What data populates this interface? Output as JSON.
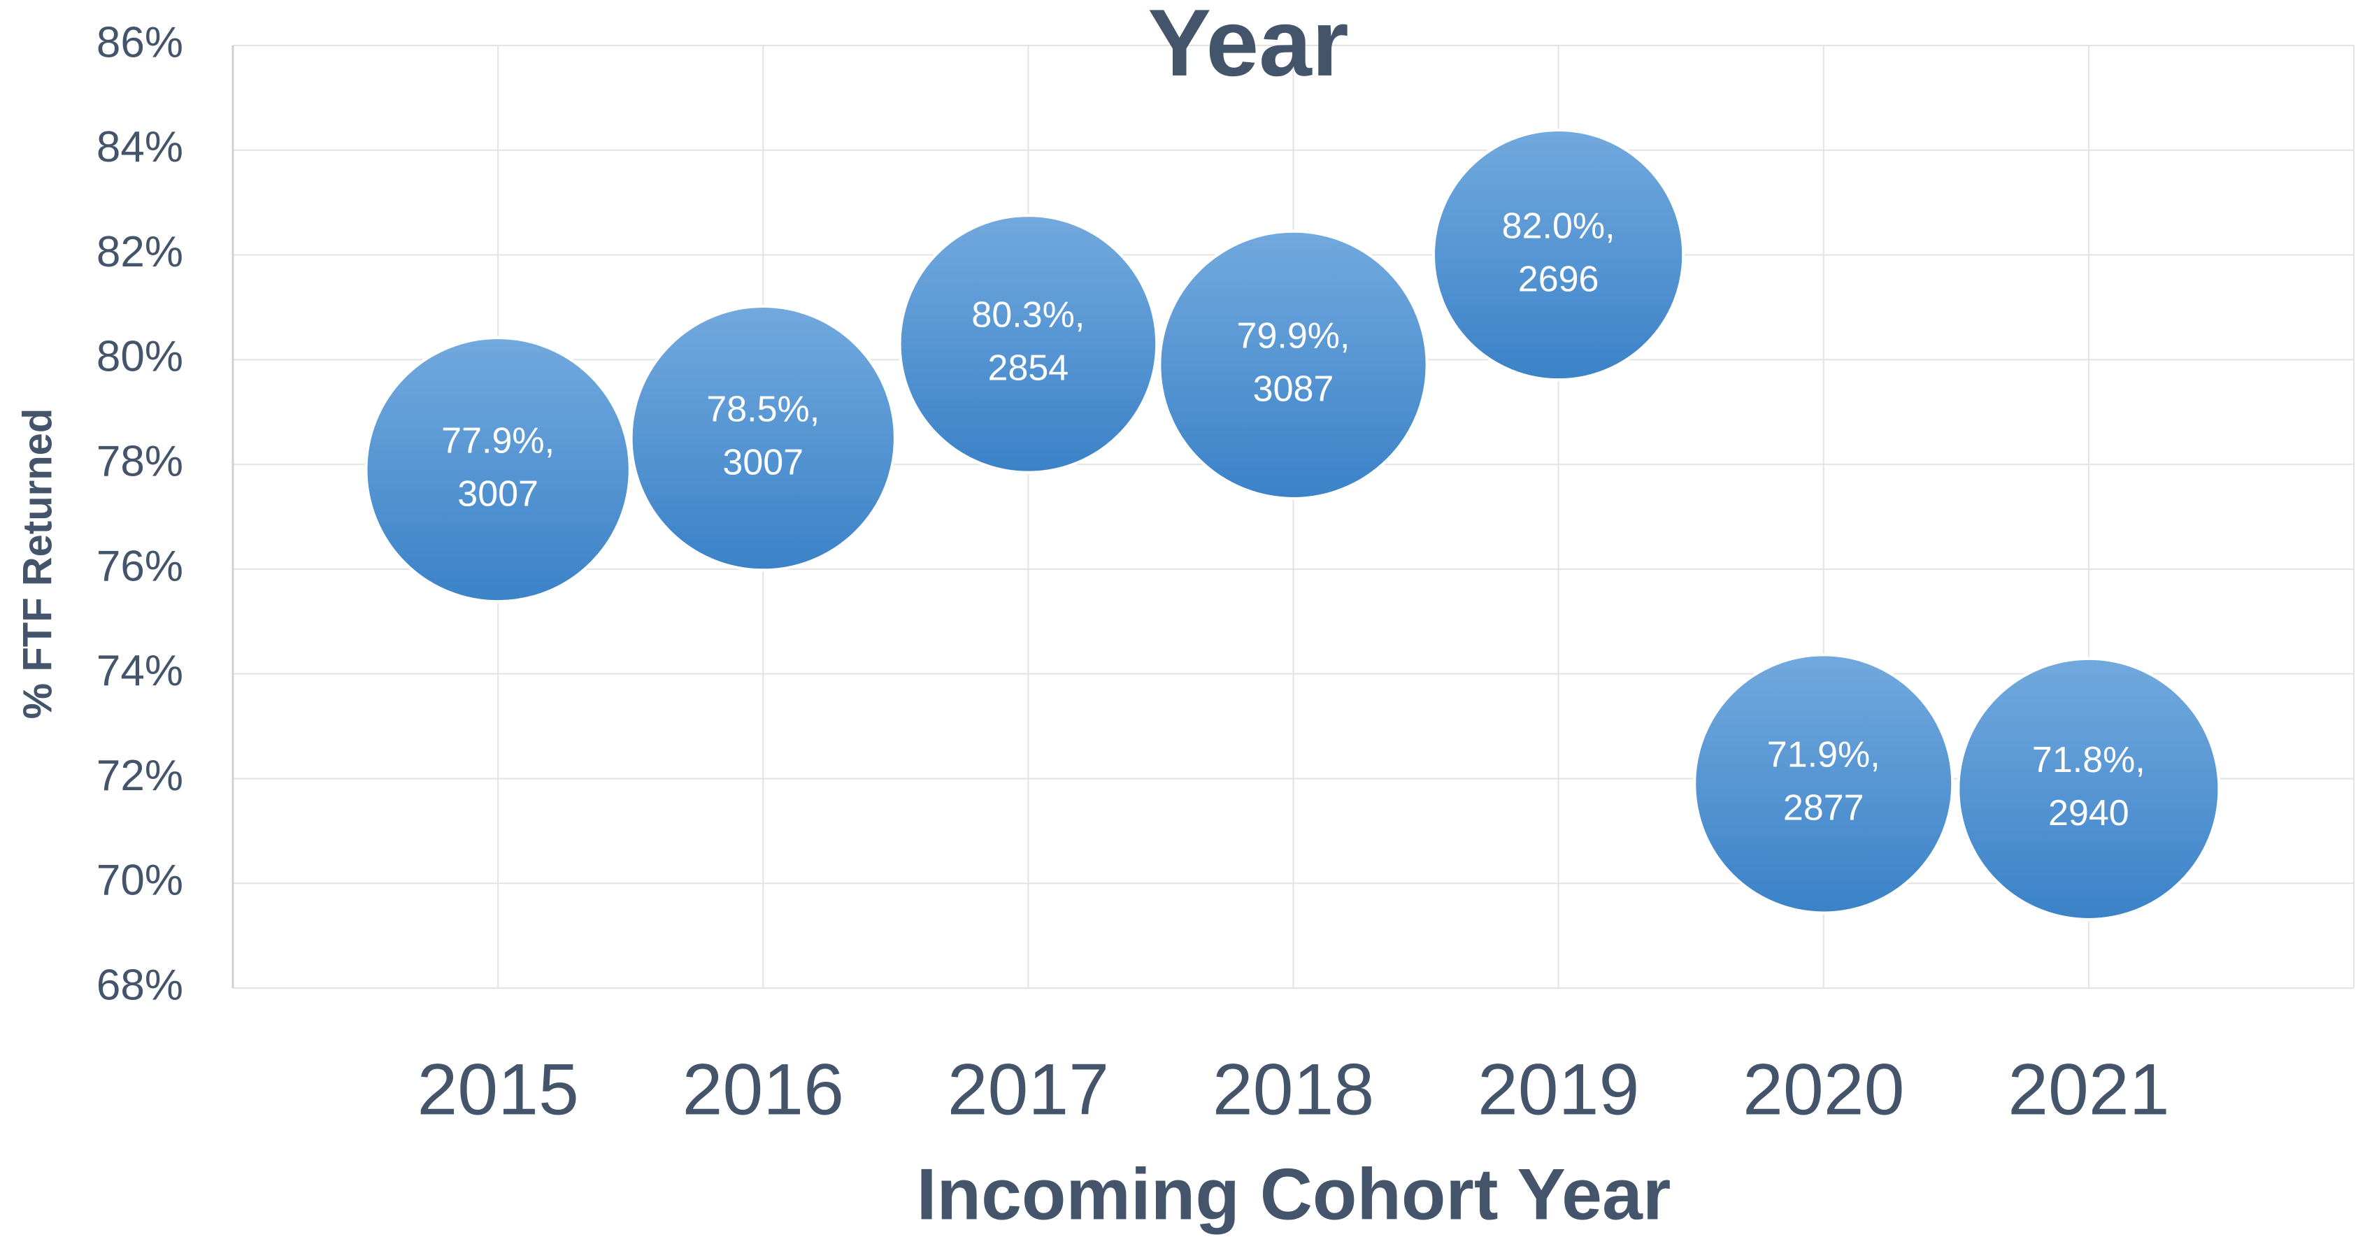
{
  "chart_data": {
    "type": "bubble",
    "title": "Year",
    "x_label": "Incoming Cohort Year",
    "y_label": "% FTF Returned",
    "x": [
      2015,
      2016,
      2017,
      2018,
      2019,
      2020,
      2021
    ],
    "values": [
      77.9,
      78.5,
      80.3,
      79.9,
      82.0,
      71.9,
      71.8
    ],
    "value_labels": [
      "77.9%,",
      "78.5%,",
      "80.3%,",
      "79.9%,",
      "82.0%,",
      "71.9%,",
      "71.8%,"
    ],
    "sizes": [
      3007,
      3007,
      2854,
      3087,
      2696,
      2877,
      2940
    ],
    "color": "#4a8fd1",
    "xlim": [
      2014,
      2022
    ],
    "xticks": [
      2015,
      2016,
      2017,
      2018,
      2019,
      2020,
      2021
    ],
    "ylim": [
      68,
      86
    ],
    "yticks": [
      {
        "value": 68,
        "label": "68%"
      },
      {
        "value": 70,
        "label": "70%"
      },
      {
        "value": 72,
        "label": "72%"
      },
      {
        "value": 74,
        "label": "74%"
      },
      {
        "value": 76,
        "label": "76%"
      },
      {
        "value": 78,
        "label": "78%"
      },
      {
        "value": 80,
        "label": "80%"
      },
      {
        "value": 82,
        "label": "82%"
      },
      {
        "value": 84,
        "label": "84%"
      },
      {
        "value": 86,
        "label": "86%"
      }
    ],
    "grid": true
  }
}
